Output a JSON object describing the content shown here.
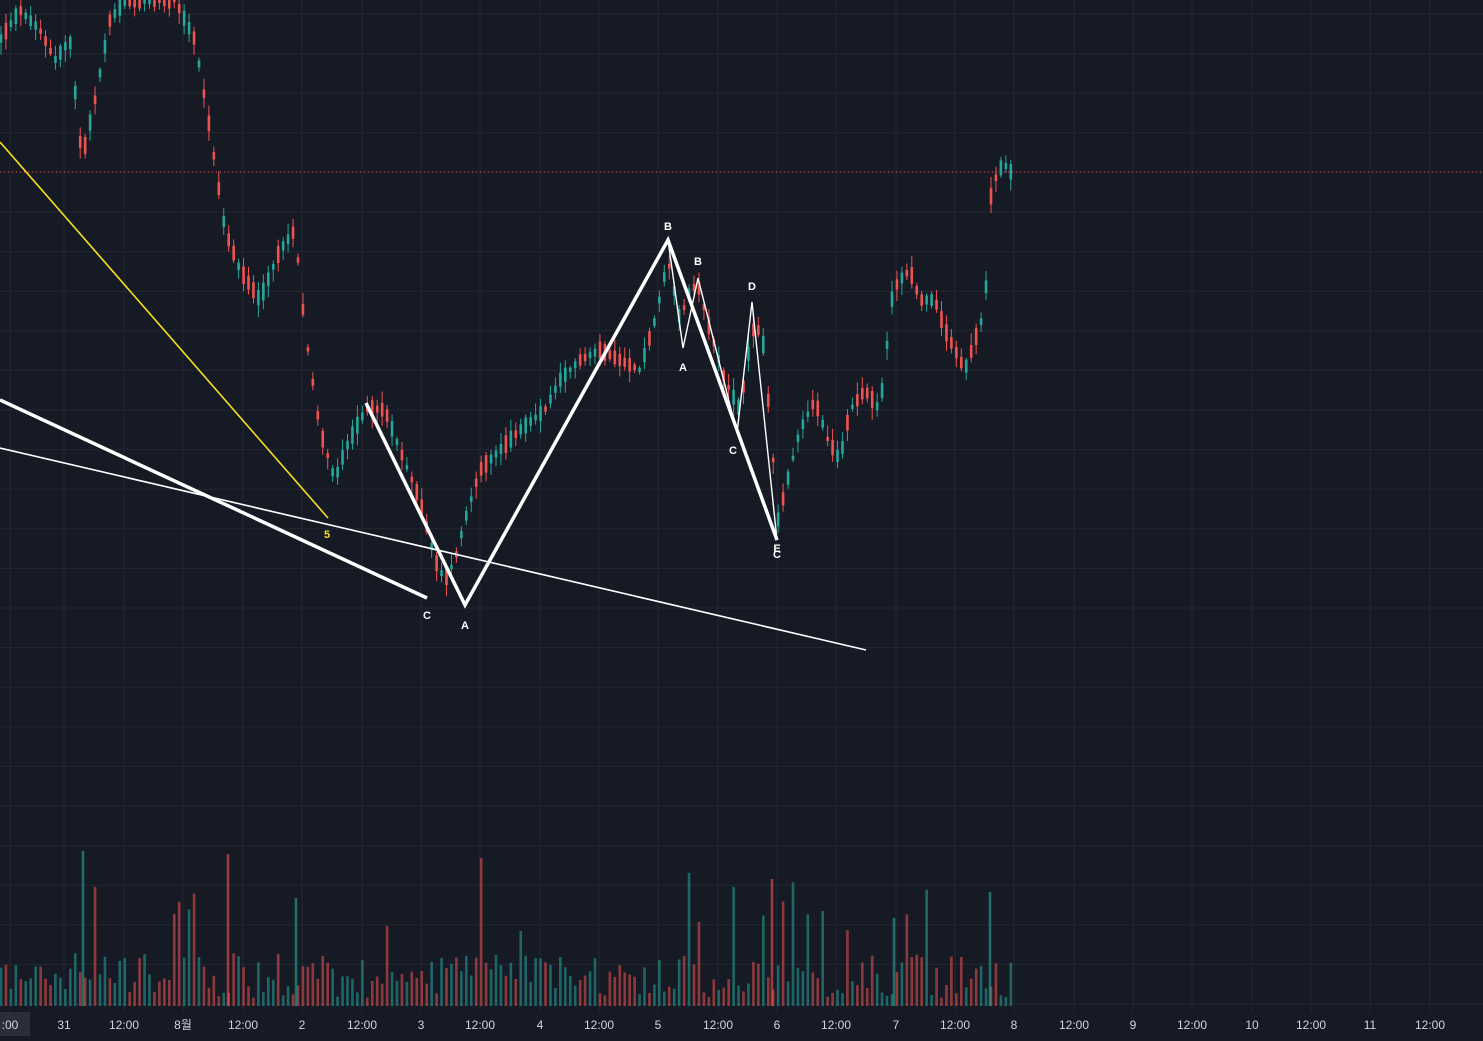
{
  "chart_data": {
    "type": "candlestick",
    "x_ticks": [
      ":00",
      "31",
      "12:00",
      "8월",
      "12:00",
      "2",
      "12:00",
      "3",
      "12:00",
      "4",
      "12:00",
      "5",
      "12:00",
      "6",
      "12:00",
      "7",
      "12:00",
      "8",
      "12:00",
      "9",
      "12:00",
      "10",
      "12:00",
      "11",
      "12:00"
    ],
    "grid": true,
    "price_scale_visible": false,
    "last_price_line": true,
    "volume_panel": true,
    "colors": {
      "background": "#161a25",
      "up": "#26a69a",
      "down": "#ef5350",
      "grid": "#232733",
      "pattern_lines": "#ffffff",
      "trend_line": "#f7e01d",
      "last_price_line": "#ef5350"
    },
    "annotations": [
      "5",
      "C",
      "A",
      "B",
      "B",
      "A",
      "C",
      "D",
      "E",
      "C"
    ]
  }
}
